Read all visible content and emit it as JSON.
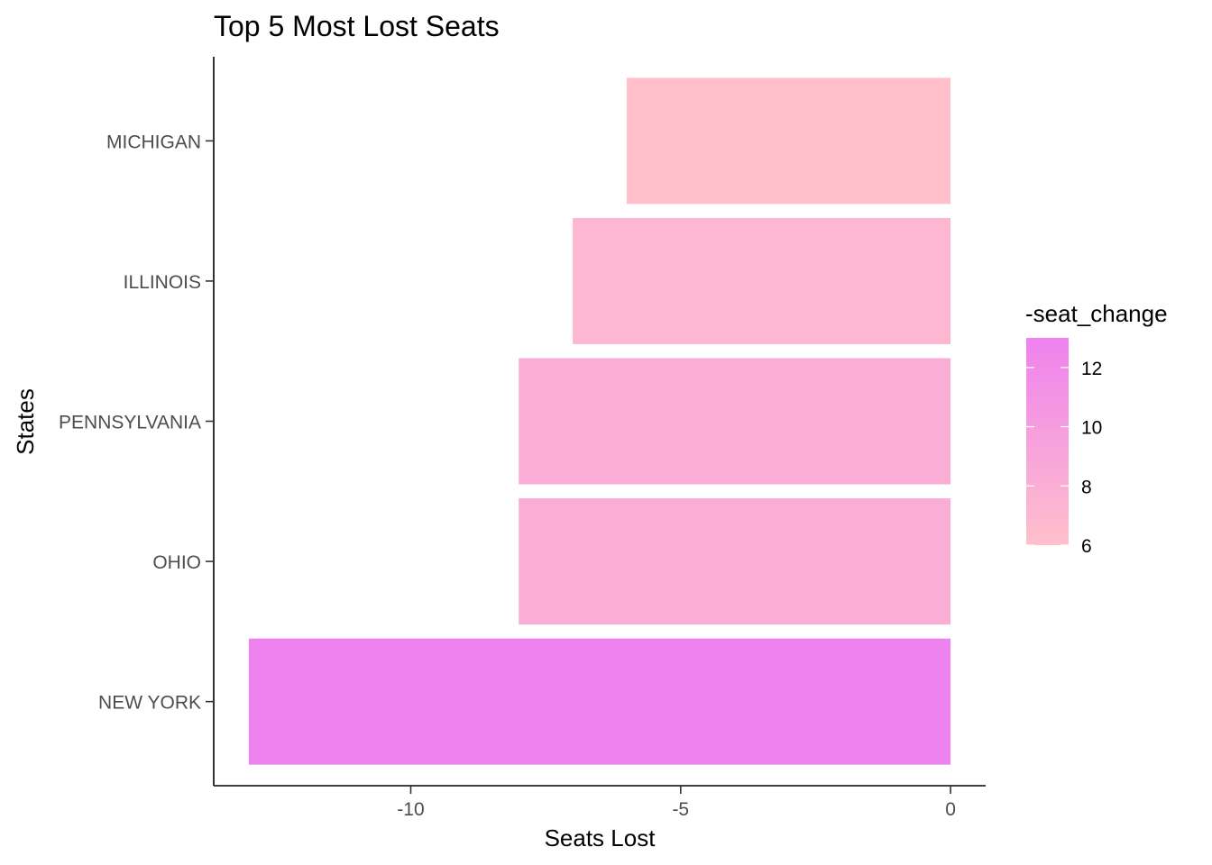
{
  "chart_data": {
    "type": "bar",
    "orientation": "horizontal",
    "title": "Top 5 Most Lost Seats",
    "xlabel": "Seats Lost",
    "ylabel": "States",
    "categories": [
      "NEW YORK",
      "OHIO",
      "PENNSYLVANIA",
      "ILLINOIS",
      "MICHIGAN"
    ],
    "values": [
      -13,
      -8,
      -8,
      -7,
      -6
    ],
    "fill_values": [
      13,
      8,
      8,
      7,
      6
    ],
    "xlim": [
      -13.65,
      0.65
    ],
    "xticks": [
      -10,
      -5,
      0
    ],
    "xtick_labels": [
      "-10",
      "-5",
      "0"
    ],
    "grid": false,
    "legend": {
      "title": "-seat_change",
      "position": "right",
      "type": "colorbar",
      "range": [
        6,
        13
      ],
      "ticks": [
        6,
        8,
        10,
        12
      ],
      "tick_labels": [
        "6",
        "8",
        "10",
        "12"
      ],
      "low_color": "#ffc0cb",
      "high_color": "#ee82ee"
    }
  }
}
